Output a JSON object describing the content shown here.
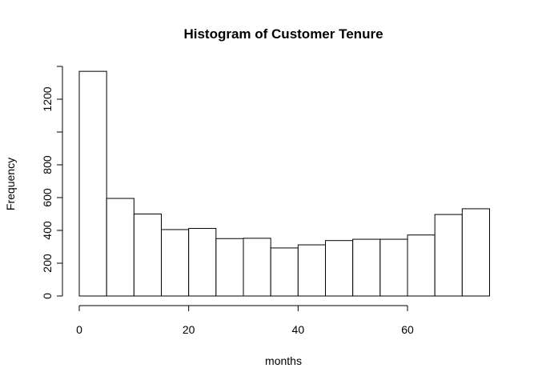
{
  "chart_data": {
    "type": "bar",
    "title": "Histogram of Customer Tenure",
    "xlabel": "months",
    "ylabel": "Frequency",
    "bins": [
      [
        0,
        5
      ],
      [
        5,
        10
      ],
      [
        10,
        15
      ],
      [
        15,
        20
      ],
      [
        20,
        25
      ],
      [
        25,
        30
      ],
      [
        30,
        35
      ],
      [
        35,
        40
      ],
      [
        40,
        45
      ],
      [
        45,
        50
      ],
      [
        50,
        55
      ],
      [
        55,
        60
      ],
      [
        60,
        65
      ],
      [
        65,
        70
      ],
      [
        70,
        75
      ]
    ],
    "values": [
      1370,
      595,
      500,
      405,
      412,
      350,
      352,
      293,
      312,
      338,
      346,
      346,
      372,
      497,
      532
    ],
    "xlim": [
      0,
      75
    ],
    "ylim": [
      0,
      1400
    ],
    "xticks": [
      0,
      20,
      40,
      60
    ],
    "yticks": [
      0,
      200,
      400,
      600,
      800,
      1200
    ],
    "xtick_labels": [
      "0",
      "20",
      "40",
      "60"
    ],
    "ytick_labels": [
      "0",
      "200",
      "400",
      "600",
      "800",
      "1200"
    ],
    "grid": false,
    "bar_fill": "#ffffff",
    "bar_stroke": "#000000"
  }
}
